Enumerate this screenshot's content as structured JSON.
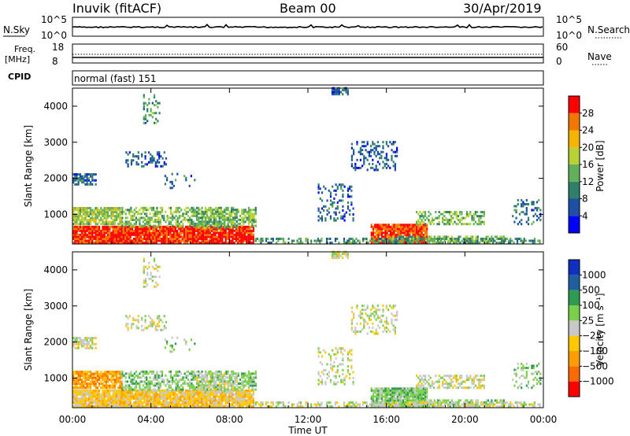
{
  "header": {
    "station": "Inuvik (fitACF)",
    "beam": "Beam 00",
    "date": "30/Apr/2019"
  },
  "noise_panel": {
    "left_label": "N.Sky",
    "right_label": "N.Search",
    "left_ticks": [
      "10^5",
      "10^0"
    ],
    "right_ticks": [
      "10^5",
      "10^0"
    ]
  },
  "freq_panel": {
    "left_label_1": "Freq.",
    "left_label_2": "[MHz]",
    "cpid_label": "CPID",
    "right_label": "Nave",
    "left_ticks": [
      "18",
      "8"
    ],
    "right_ticks": [
      "60",
      "0"
    ],
    "cpid_text": "normal (fast) 151"
  },
  "colorbars": {
    "power": {
      "label": "Power [dB]",
      "ticks": [
        "28",
        "24",
        "20",
        "16",
        "12",
        "8",
        "4"
      ],
      "colors": [
        "#0000ff",
        "#1d4fa5",
        "#2f7f6a",
        "#63b05c",
        "#b8d233",
        "#f6b400",
        "#f07800",
        "#ff0000"
      ]
    },
    "velocity": {
      "label": "Velocity [m s⁻¹]",
      "ticks": [
        "1000",
        "500",
        "100",
        "25",
        "−25",
        "−100",
        "−500",
        "−1000"
      ],
      "colors": [
        "#ff0000",
        "#ff6a00",
        "#ff9e00",
        "#ffc800",
        "#c8c8c8",
        "#7ad04a",
        "#2e9a52",
        "#1f5fa0",
        "#1030c0"
      ]
    }
  },
  "chart_data": [
    {
      "type": "heatmap",
      "name_hint": "power",
      "ylabel": "Slant Range [km]",
      "xlabel": "",
      "y_ticks": [
        "1000",
        "2000",
        "3000",
        "4000"
      ],
      "ylim": [
        180,
        4500
      ],
      "x_ticks": [
        "00:00",
        "04:00",
        "08:00",
        "12:00",
        "16:00",
        "20:00",
        "00:00"
      ],
      "xlim_hours": [
        0,
        24
      ]
    },
    {
      "type": "heatmap",
      "name_hint": "velocity",
      "ylabel": "Slant Range [km]",
      "xlabel": "Time UT",
      "y_ticks": [
        "1000",
        "2000",
        "3000",
        "4000"
      ],
      "ylim": [
        180,
        4500
      ],
      "x_ticks": [
        "00:00",
        "04:00",
        "08:00",
        "12:00",
        "16:00",
        "20:00",
        "00:00"
      ],
      "xlim_hours": [
        0,
        24
      ]
    }
  ]
}
